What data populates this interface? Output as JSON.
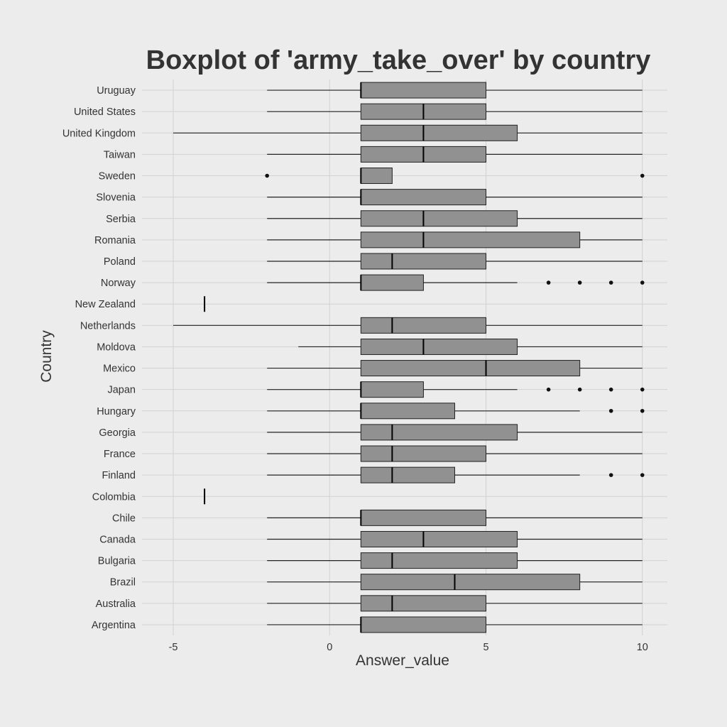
{
  "chart_data": {
    "type": "boxplot",
    "orientation": "horizontal",
    "title": "Boxplot of 'army_take_over' by country",
    "xlabel": "Answer_value",
    "ylabel": "Country",
    "xlim": [
      -6,
      10.8
    ],
    "x_ticks": [
      {
        "value": -5,
        "label": "-5"
      },
      {
        "value": 0,
        "label": "0"
      },
      {
        "value": 5,
        "label": "5"
      },
      {
        "value": 10,
        "label": "10"
      }
    ],
    "grid": true,
    "legend": "none",
    "colors": {
      "background": "#ececec",
      "grid": "#d2d2d2",
      "box_fill": "#919191",
      "box_stroke": "#222222",
      "whisker": "#222222",
      "outlier": "#111111",
      "text": "#333333"
    },
    "categories": [
      "Uruguay",
      "United States",
      "United Kingdom",
      "Taiwan",
      "Sweden",
      "Slovenia",
      "Serbia",
      "Romania",
      "Poland",
      "Norway",
      "New Zealand",
      "Netherlands",
      "Moldova",
      "Mexico",
      "Japan",
      "Hungary",
      "Georgia",
      "France",
      "Finland",
      "Colombia",
      "Chile",
      "Canada",
      "Bulgaria",
      "Brazil",
      "Australia",
      "Argentina"
    ],
    "boxes": [
      {
        "country": "Uruguay",
        "whisker_low": -2,
        "q1": 1,
        "median": 1,
        "q3": 5,
        "whisker_high": 10,
        "outliers": []
      },
      {
        "country": "United States",
        "whisker_low": -2,
        "q1": 1,
        "median": 3,
        "q3": 5,
        "whisker_high": 10,
        "outliers": []
      },
      {
        "country": "United Kingdom",
        "whisker_low": -5,
        "q1": 1,
        "median": 3,
        "q3": 6,
        "whisker_high": 10,
        "outliers": []
      },
      {
        "country": "Taiwan",
        "whisker_low": -2,
        "q1": 1,
        "median": 3,
        "q3": 5,
        "whisker_high": 10,
        "outliers": []
      },
      {
        "country": "Sweden",
        "whisker_low": null,
        "q1": 1,
        "median": 1,
        "q3": 2,
        "whisker_high": null,
        "outliers": [
          -2,
          10
        ]
      },
      {
        "country": "Slovenia",
        "whisker_low": -2,
        "q1": 1,
        "median": 1,
        "q3": 5,
        "whisker_high": 10,
        "outliers": []
      },
      {
        "country": "Serbia",
        "whisker_low": -2,
        "q1": 1,
        "median": 3,
        "q3": 6,
        "whisker_high": 10,
        "outliers": []
      },
      {
        "country": "Romania",
        "whisker_low": -2,
        "q1": 1,
        "median": 3,
        "q3": 8,
        "whisker_high": 10,
        "outliers": []
      },
      {
        "country": "Poland",
        "whisker_low": -2,
        "q1": 1,
        "median": 2,
        "q3": 5,
        "whisker_high": 10,
        "outliers": []
      },
      {
        "country": "Norway",
        "whisker_low": -2,
        "q1": 1,
        "median": 1,
        "q3": 3,
        "whisker_high": 6,
        "outliers": [
          7,
          8,
          9,
          10
        ]
      },
      {
        "country": "New Zealand",
        "whisker_low": -4,
        "q1": -4,
        "median": -4,
        "q3": -4,
        "whisker_high": -4,
        "outliers": []
      },
      {
        "country": "Netherlands",
        "whisker_low": -5,
        "q1": 1,
        "median": 2,
        "q3": 5,
        "whisker_high": 10,
        "outliers": []
      },
      {
        "country": "Moldova",
        "whisker_low": -1,
        "q1": 1,
        "median": 3,
        "q3": 6,
        "whisker_high": 10,
        "outliers": []
      },
      {
        "country": "Mexico",
        "whisker_low": -2,
        "q1": 1,
        "median": 5,
        "q3": 8,
        "whisker_high": 10,
        "outliers": []
      },
      {
        "country": "Japan",
        "whisker_low": -2,
        "q1": 1,
        "median": 1,
        "q3": 3,
        "whisker_high": 6,
        "outliers": [
          7,
          8,
          9,
          10
        ]
      },
      {
        "country": "Hungary",
        "whisker_low": -2,
        "q1": 1,
        "median": 1,
        "q3": 4,
        "whisker_high": 8,
        "outliers": [
          9,
          10
        ]
      },
      {
        "country": "Georgia",
        "whisker_low": -2,
        "q1": 1,
        "median": 2,
        "q3": 6,
        "whisker_high": 10,
        "outliers": []
      },
      {
        "country": "France",
        "whisker_low": -2,
        "q1": 1,
        "median": 2,
        "q3": 5,
        "whisker_high": 10,
        "outliers": []
      },
      {
        "country": "Finland",
        "whisker_low": -2,
        "q1": 1,
        "median": 2,
        "q3": 4,
        "whisker_high": 8,
        "outliers": [
          9,
          10
        ]
      },
      {
        "country": "Colombia",
        "whisker_low": -4,
        "q1": -4,
        "median": -4,
        "q3": -4,
        "whisker_high": -4,
        "outliers": []
      },
      {
        "country": "Chile",
        "whisker_low": -2,
        "q1": 1,
        "median": 1,
        "q3": 5,
        "whisker_high": 10,
        "outliers": []
      },
      {
        "country": "Canada",
        "whisker_low": -2,
        "q1": 1,
        "median": 3,
        "q3": 6,
        "whisker_high": 10,
        "outliers": []
      },
      {
        "country": "Bulgaria",
        "whisker_low": -2,
        "q1": 1,
        "median": 2,
        "q3": 6,
        "whisker_high": 10,
        "outliers": []
      },
      {
        "country": "Brazil",
        "whisker_low": -2,
        "q1": 1,
        "median": 4,
        "q3": 8,
        "whisker_high": 10,
        "outliers": []
      },
      {
        "country": "Australia",
        "whisker_low": -2,
        "q1": 1,
        "median": 2,
        "q3": 5,
        "whisker_high": 10,
        "outliers": []
      },
      {
        "country": "Argentina",
        "whisker_low": -2,
        "q1": 1,
        "median": 1,
        "q3": 5,
        "whisker_high": 10,
        "outliers": []
      }
    ]
  }
}
